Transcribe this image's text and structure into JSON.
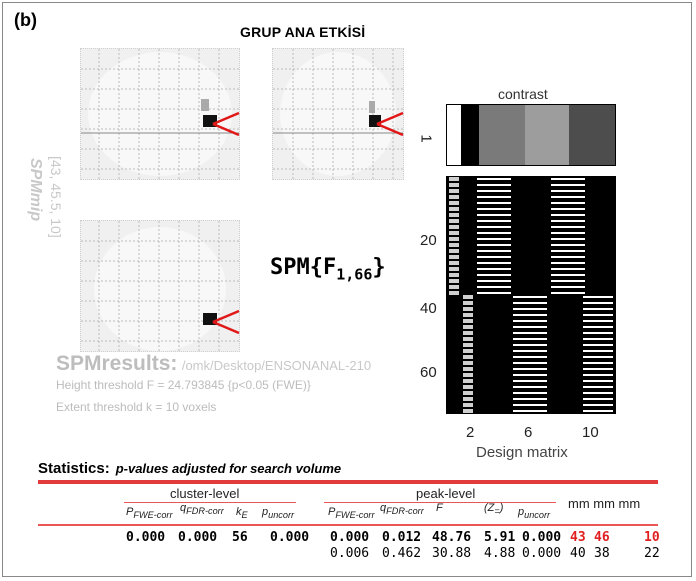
{
  "panel_label": "(b)",
  "title": "GRUP ANA ETKİSİ",
  "mip": {
    "side_label": "SPMmip",
    "side_coords": "[43, 45.5, 10]"
  },
  "spm_stat": {
    "prefix": "SPM{F",
    "sub": "1,66",
    "suffix": "}"
  },
  "results": {
    "heading": "SPMresults:",
    "path": "/omk/Desktop/ENSONANAL-210",
    "height_threshold": "Height threshold F = 24.793845  {p<0.05 (FWE)}",
    "extent_threshold": "Extent threshold k = 10 voxels"
  },
  "design": {
    "contrast_title": "contrast",
    "contrast_tick": "1",
    "y_ticks": [
      "20",
      "40",
      "60"
    ],
    "x_ticks": [
      "2",
      "6",
      "10"
    ],
    "x_label": "Design matrix",
    "contrast_shades": [
      "#ffffff",
      "#000000",
      "#7a7a7a",
      "#9d9d9d",
      "#4d4d4d"
    ]
  },
  "stats": {
    "heading": "Statistics:",
    "subheading": "p-values adjusted for search volume",
    "cluster_level": "cluster-level",
    "peak_level": "peak-level",
    "mm_header": "mm mm mm",
    "columns": {
      "p_fwe_corr": "P",
      "p_fwe_corr_sub": "FWE-corr",
      "q_fdr_corr": "q",
      "q_fdr_corr_sub": "FDR-corr",
      "k_e": "k",
      "k_e_sub": "E",
      "p_uncorr": "p",
      "p_uncorr_sub": "uncorr",
      "peak_p_fwe": "P",
      "peak_p_fwe_sub": "FWE-corr",
      "peak_q_fdr": "q",
      "peak_q_fdr_sub": "FDR-corr",
      "F": "F",
      "Z": "(Z",
      "Z_sub": "=",
      "Z_close": ")",
      "peak_p_uncorr": "p",
      "peak_p_uncorr_sub": "uncorr"
    },
    "row1": {
      "c_pfwe": "0.000",
      "c_qfdr": "0.000",
      "c_ke": "56",
      "c_punc": "0.000",
      "p_pfwe": "0.000",
      "p_qfdr": "0.012",
      "p_F": "48.76",
      "p_Z": "5.91",
      "p_punc": "0.000",
      "x": "43",
      "y": "46",
      "z": "10"
    },
    "row2": {
      "p_pfwe": "0.006",
      "p_qfdr": "0.462",
      "p_F": "30.88",
      "p_Z": "4.88",
      "p_punc": "0.000",
      "x": "40",
      "y": "38",
      "z": "22"
    },
    "highlight_color": "#e02020"
  }
}
